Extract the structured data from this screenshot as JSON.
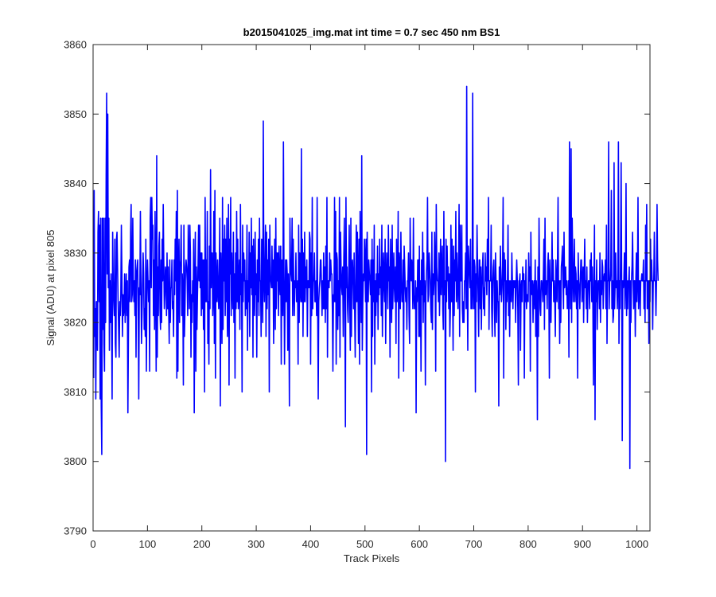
{
  "window": {
    "title": "b2015041025_img.mat int time = 0.7 sec  450 nm BS1"
  },
  "chart_data": {
    "type": "line",
    "title": "b2015041025_img.mat int time = 0.7 sec  450 nm BS1",
    "xlabel": "Track Pixels",
    "ylabel": "Signal (ADU) at pixel 805",
    "xlim": [
      0,
      1024
    ],
    "ylim": [
      3790,
      3860
    ],
    "xticks": [
      0,
      100,
      200,
      300,
      400,
      500,
      600,
      700,
      800,
      900,
      1000
    ],
    "yticks": [
      3790,
      3800,
      3810,
      3820,
      3830,
      3840,
      3850,
      3860
    ],
    "xtick_labels": [
      "0",
      "100",
      "200",
      "300",
      "400",
      "500",
      "600",
      "700",
      "800",
      "900",
      "1000"
    ],
    "ytick_labels": [
      "3790",
      "3800",
      "3810",
      "3820",
      "3830",
      "3840",
      "3850",
      "3860"
    ],
    "grid": false,
    "box": true,
    "line_color": "#0000ff",
    "series": [
      {
        "x_start": 1,
        "x_step": 1,
        "values": [
          3812,
          3839,
          3818,
          3822,
          3809,
          3823,
          3823,
          3816,
          3833,
          3836,
          3823,
          3834,
          3809,
          3835,
          3808,
          3801,
          3835,
          3819,
          3835,
          3817,
          3813,
          3835,
          3820,
          3841,
          3853,
          3827,
          3850,
          3825,
          3835,
          3816,
          3826,
          3820,
          3827,
          3821,
          3809,
          3833,
          3826,
          3823,
          3821,
          3832,
          3817,
          3815,
          3832,
          3833,
          3828,
          3823,
          3819,
          3815,
          3823,
          3821,
          3824,
          3834,
          3827,
          3818,
          3824,
          3821,
          3822,
          3827,
          3820,
          3824,
          3827,
          3821,
          3826,
          3807,
          3818,
          3828,
          3829,
          3823,
          3833,
          3837,
          3823,
          3824,
          3835,
          3826,
          3823,
          3826,
          3821,
          3829,
          3815,
          3827,
          3828,
          3829,
          3822,
          3809,
          3825,
          3824,
          3836,
          3826,
          3817,
          3821,
          3826,
          3830,
          3827,
          3819,
          3822,
          3818,
          3832,
          3813,
          3825,
          3829,
          3826,
          3823,
          3826,
          3813,
          3835,
          3838,
          3825,
          3838,
          3832,
          3834,
          3821,
          3829,
          3819,
          3836,
          3826,
          3813,
          3844,
          3815,
          3828,
          3821,
          3831,
          3833,
          3822,
          3819,
          3829,
          3820,
          3832,
          3826,
          3837,
          3829,
          3822,
          3824,
          3828,
          3827,
          3821,
          3830,
          3822,
          3828,
          3822,
          3817,
          3829,
          3820,
          3825,
          3825,
          3829,
          3822,
          3823,
          3818,
          3829,
          3824,
          3832,
          3826,
          3836,
          3812,
          3839,
          3813,
          3828,
          3832,
          3820,
          3828,
          3829,
          3834,
          3821,
          3827,
          3824,
          3811,
          3834,
          3818,
          3822,
          3828,
          3829,
          3828,
          3826,
          3821,
          3834,
          3829,
          3822,
          3834,
          3830,
          3815,
          3824,
          3820,
          3826,
          3823,
          3832,
          3807,
          3824,
          3833,
          3813,
          3828,
          3819,
          3824,
          3828,
          3834,
          3826,
          3834,
          3825,
          3830,
          3821,
          3830,
          3822,
          3829,
          3819,
          3829,
          3810,
          3838,
          3823,
          3829,
          3823,
          3836,
          3817,
          3823,
          3814,
          3831,
          3822,
          3842,
          3825,
          3830,
          3830,
          3821,
          3824,
          3836,
          3817,
          3839,
          3812,
          3830,
          3826,
          3823,
          3829,
          3825,
          3822,
          3827,
          3835,
          3808,
          3830,
          3826,
          3817,
          3838,
          3819,
          3832,
          3826,
          3834,
          3821,
          3832,
          3823,
          3835,
          3818,
          3822,
          3837,
          3811,
          3832,
          3827,
          3838,
          3821,
          3830,
          3825,
          3822,
          3833,
          3820,
          3827,
          3812,
          3830,
          3822,
          3836,
          3823,
          3832,
          3822,
          3826,
          3829,
          3819,
          3837,
          3824,
          3827,
          3810,
          3834,
          3823,
          3830,
          3826,
          3829,
          3821,
          3826,
          3822,
          3834,
          3816,
          3826,
          3823,
          3833,
          3818,
          3830,
          3825,
          3835,
          3824,
          3831,
          3815,
          3832,
          3826,
          3821,
          3833,
          3824,
          3827,
          3815,
          3829,
          3823,
          3832,
          3821,
          3835,
          3826,
          3826,
          3818,
          3832,
          3827,
          3820,
          3849,
          3826,
          3823,
          3828,
          3834,
          3818,
          3833,
          3822,
          3829,
          3824,
          3832,
          3810,
          3834,
          3826,
          3826,
          3825,
          3831,
          3825,
          3829,
          3817,
          3828,
          3832,
          3819,
          3835,
          3822,
          3830,
          3826,
          3830,
          3821,
          3831,
          3826,
          3824,
          3831,
          3814,
          3829,
          3826,
          3821,
          3846,
          3828,
          3814,
          3823,
          3829,
          3823,
          3829,
          3827,
          3816,
          3827,
          3822,
          3808,
          3835,
          3829,
          3827,
          3826,
          3835,
          3821,
          3832,
          3825,
          3821,
          3826,
          3825,
          3830,
          3823,
          3823,
          3826,
          3814,
          3834,
          3820,
          3830,
          3825,
          3823,
          3845,
          3823,
          3832,
          3818,
          3830,
          3823,
          3833,
          3823,
          3828,
          3825,
          3829,
          3818,
          3826,
          3826,
          3825,
          3833,
          3832,
          3814,
          3830,
          3821,
          3838,
          3822,
          3826,
          3826,
          3830,
          3823,
          3823,
          3826,
          3821,
          3838,
          3822,
          3809,
          3823,
          3825,
          3826,
          3829,
          3829,
          3825,
          3821,
          3826,
          3822,
          3830,
          3822,
          3828,
          3820,
          3831,
          3822,
          3838,
          3815,
          3826,
          3826,
          3825,
          3830,
          3826,
          3829,
          3827,
          3827,
          3822,
          3813,
          3824,
          3823,
          3838,
          3823,
          3836,
          3814,
          3830,
          3829,
          3819,
          3826,
          3821,
          3838,
          3815,
          3833,
          3828,
          3825,
          3824,
          3828,
          3818,
          3829,
          3835,
          3822,
          3805,
          3838,
          3825,
          3828,
          3822,
          3820,
          3826,
          3834,
          3823,
          3816,
          3835,
          3818,
          3828,
          3829,
          3826,
          3822,
          3830,
          3822,
          3815,
          3826,
          3834,
          3823,
          3833,
          3826,
          3817,
          3832,
          3814,
          3836,
          3829,
          3820,
          3844,
          3816,
          3823,
          3827,
          3826,
          3832,
          3829,
          3823,
          3832,
          3801,
          3833,
          3825,
          3823,
          3829,
          3827,
          3826,
          3824,
          3829,
          3810,
          3832,
          3818,
          3829,
          3823,
          3834,
          3814,
          3826,
          3821,
          3827,
          3823,
          3831,
          3819,
          3827,
          3824,
          3832,
          3825,
          3828,
          3821,
          3834,
          3818,
          3826,
          3830,
          3825,
          3823,
          3832,
          3817,
          3826,
          3830,
          3826,
          3822,
          3834,
          3826,
          3828,
          3815,
          3832,
          3826,
          3820,
          3834,
          3822,
          3826,
          3830,
          3825,
          3823,
          3828,
          3817,
          3832,
          3823,
          3826,
          3836,
          3812,
          3830,
          3828,
          3822,
          3833,
          3826,
          3823,
          3823,
          3829,
          3813,
          3831,
          3828,
          3825,
          3823,
          3825,
          3819,
          3826,
          3826,
          3830,
          3821,
          3817,
          3835,
          3828,
          3826,
          3829,
          3827,
          3822,
          3835,
          3824,
          3822,
          3822,
          3826,
          3807,
          3825,
          3823,
          3829,
          3829,
          3818,
          3831,
          3818,
          3826,
          3813,
          3829,
          3824,
          3833,
          3820,
          3830,
          3823,
          3826,
          3811,
          3824,
          3827,
          3829,
          3838,
          3823,
          3824,
          3830,
          3828,
          3826,
          3822,
          3820,
          3833,
          3819,
          3827,
          3824,
          3826,
          3833,
          3828,
          3813,
          3837,
          3828,
          3826,
          3826,
          3823,
          3830,
          3821,
          3826,
          3832,
          3824,
          3828,
          3831,
          3822,
          3819,
          3836,
          3824,
          3826,
          3800,
          3832,
          3823,
          3831,
          3826,
          3828,
          3822,
          3827,
          3818,
          3822,
          3834,
          3823,
          3832,
          3825,
          3816,
          3831,
          3821,
          3829,
          3826,
          3836,
          3823,
          3830,
          3826,
          3822,
          3828,
          3837,
          3818,
          3834,
          3826,
          3826,
          3834,
          3822,
          3820,
          3823,
          3820,
          3826,
          3826,
          3830,
          3822,
          3854,
          3826,
          3816,
          3831,
          3829,
          3827,
          3825,
          3832,
          3822,
          3826,
          3822,
          3853,
          3825,
          3822,
          3829,
          3828,
          3810,
          3827,
          3823,
          3834,
          3828,
          3824,
          3818,
          3829,
          3829,
          3822,
          3828,
          3819,
          3825,
          3828,
          3830,
          3822,
          3825,
          3821,
          3830,
          3826,
          3828,
          3824,
          3832,
          3826,
          3838,
          3819,
          3826,
          3826,
          3826,
          3834,
          3822,
          3818,
          3826,
          3828,
          3829,
          3822,
          3818,
          3830,
          3826,
          3820,
          3826,
          3823,
          3823,
          3808,
          3828,
          3824,
          3831,
          3826,
          3823,
          3825,
          3828,
          3838,
          3812,
          3830,
          3826,
          3829,
          3819,
          3826,
          3823,
          3826,
          3834,
          3821,
          3826,
          3818,
          3826,
          3825,
          3823,
          3830,
          3826,
          3822,
          3826,
          3826,
          3825,
          3826,
          3820,
          3826,
          3829,
          3826,
          3822,
          3811,
          3826,
          3826,
          3827,
          3816,
          3825,
          3826,
          3823,
          3828,
          3826,
          3827,
          3812,
          3826,
          3823,
          3829,
          3822,
          3824,
          3824,
          3823,
          3830,
          3826,
          3828,
          3813,
          3833,
          3825,
          3824,
          3826,
          3820,
          3825,
          3826,
          3822,
          3829,
          3818,
          3826,
          3823,
          3806,
          3828,
          3818,
          3835,
          3826,
          3822,
          3821,
          3826,
          3826,
          3825,
          3823,
          3827,
          3832,
          3819,
          3835,
          3824,
          3825,
          3826,
          3822,
          3828,
          3830,
          3826,
          3812,
          3829,
          3823,
          3820,
          3826,
          3833,
          3826,
          3829,
          3823,
          3826,
          3823,
          3818,
          3829,
          3826,
          3823,
          3829,
          3838,
          3822,
          3826,
          3817,
          3826,
          3820,
          3828,
          3829,
          3831,
          3826,
          3822,
          3833,
          3825,
          3826,
          3828,
          3824,
          3826,
          3822,
          3823,
          3826,
          3815,
          3846,
          3828,
          3822,
          3845,
          3820,
          3835,
          3829,
          3823,
          3826,
          3832,
          3823,
          3828,
          3827,
          3822,
          3826,
          3812,
          3830,
          3826,
          3825,
          3822,
          3826,
          3829,
          3829,
          3823,
          3826,
          3828,
          3820,
          3826,
          3832,
          3825,
          3826,
          3822,
          3828,
          3820,
          3825,
          3826,
          3826,
          3822,
          3829,
          3826,
          3830,
          3823,
          3828,
          3823,
          3811,
          3826,
          3834,
          3806,
          3826,
          3823,
          3829,
          3819,
          3825,
          3826,
          3826,
          3822,
          3830,
          3820,
          3826,
          3824,
          3829,
          3828,
          3822,
          3826,
          3827,
          3826,
          3829,
          3822,
          3834,
          3817,
          3826,
          3826,
          3846,
          3822,
          3826,
          3826,
          3828,
          3839,
          3822,
          3826,
          3820,
          3821,
          3843,
          3822,
          3826,
          3830,
          3825,
          3826,
          3822,
          3826,
          3846,
          3817,
          3826,
          3822,
          3830,
          3843,
          3826,
          3803,
          3826,
          3825,
          3826,
          3830,
          3822,
          3826,
          3840,
          3821,
          3826,
          3822,
          3826,
          3826,
          3828,
          3799,
          3826,
          3820,
          3826,
          3828,
          3833,
          3826,
          3822,
          3826,
          3826,
          3818,
          3826,
          3830,
          3823,
          3826,
          3838,
          3822,
          3826,
          3826,
          3821,
          3826,
          3826,
          3827,
          3826,
          3826,
          3829,
          3822,
          3826,
          3820,
          3834,
          3826,
          3837,
          3822,
          3826,
          3826,
          3817,
          3826,
          3823,
          3832,
          3826,
          3829,
          3826,
          3819,
          3826,
          3826,
          3833,
          3826,
          3826,
          3821,
          3826,
          3837,
          3829,
          3826
        ]
      }
    ]
  }
}
